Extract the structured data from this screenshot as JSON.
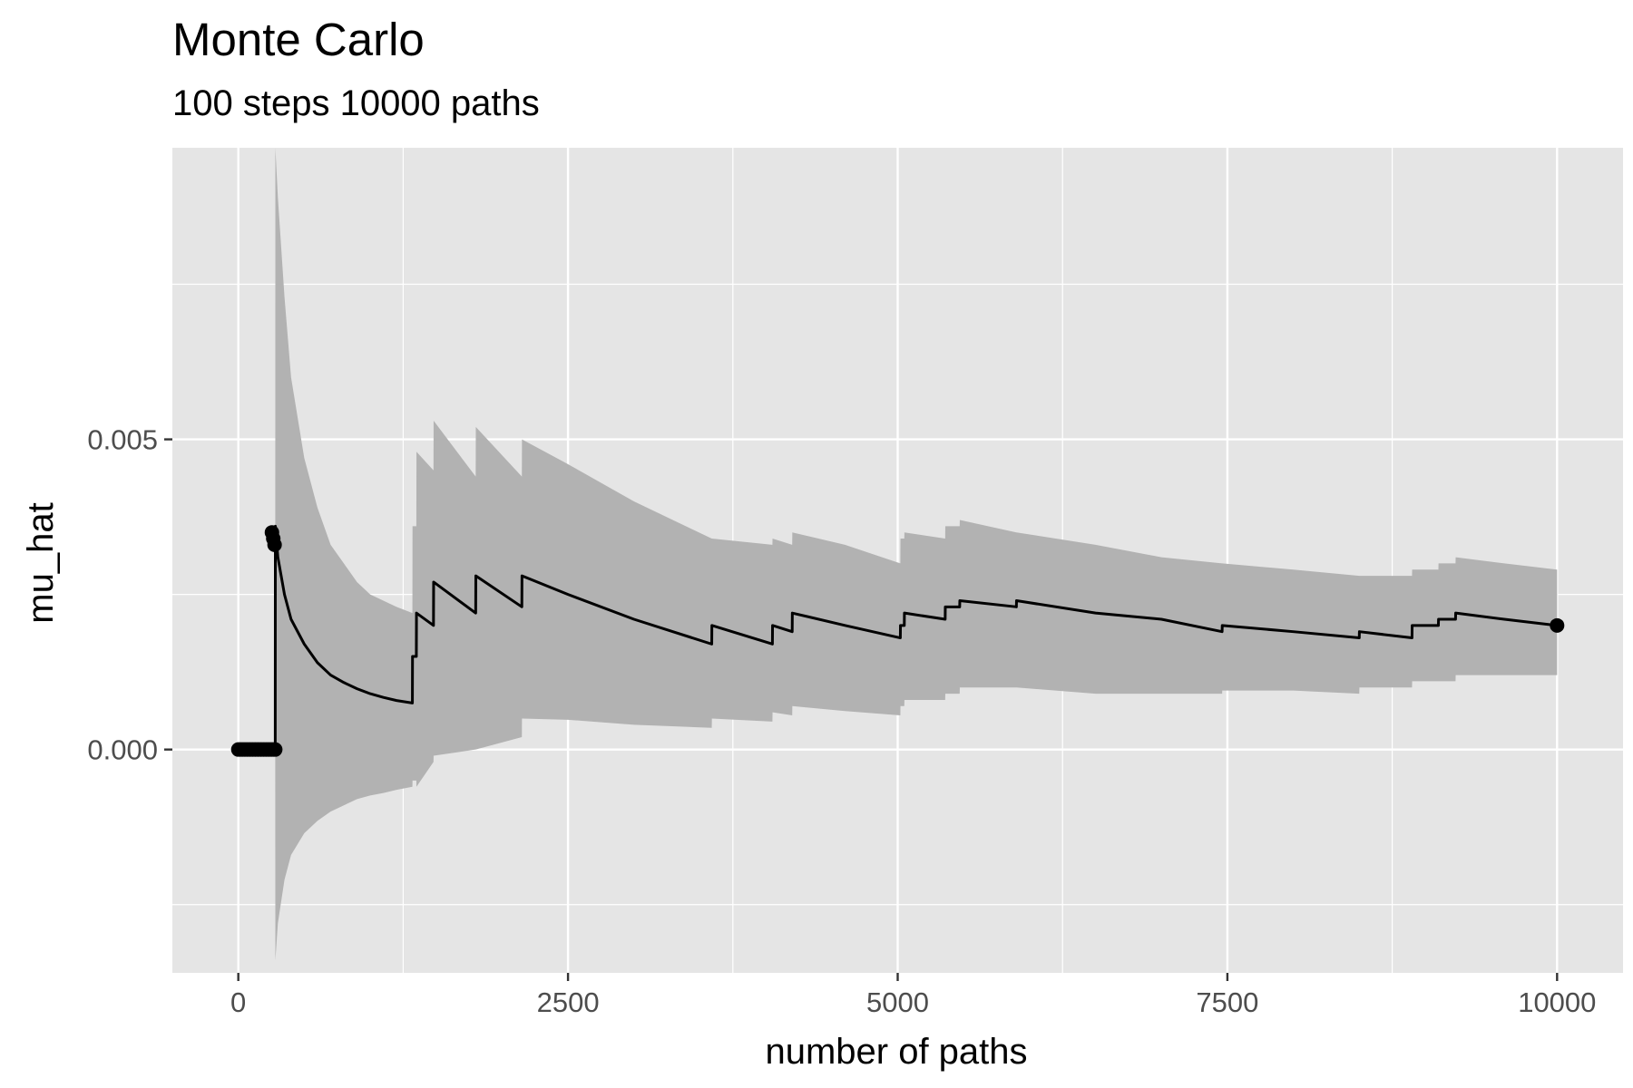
{
  "chart_data": {
    "type": "line",
    "title": "Monte Carlo",
    "subtitle": "100  steps 10000  paths",
    "xlabel": "number of paths",
    "ylabel": "mu_hat",
    "xlim": [
      -500,
      10500
    ],
    "ylim": [
      -0.0036,
      0.0097
    ],
    "x_ticks": [
      0,
      2500,
      5000,
      7500,
      10000
    ],
    "x_tick_labels": [
      "0",
      "2500",
      "5000",
      "7500",
      "10000"
    ],
    "y_ticks": [
      0.0,
      0.005
    ],
    "y_tick_labels": [
      "0.000",
      "0.005"
    ],
    "grid": true,
    "colors": {
      "panel": "#e5e5e5",
      "grid": "#ffffff",
      "ribbon": "#b2b2b2",
      "line": "#000000",
      "axis_text": "#4d4d4d"
    },
    "series": [
      {
        "x": [
          0,
          50,
          100,
          150,
          200,
          250,
          280,
          281,
          300,
          350,
          400,
          500,
          600,
          700,
          800,
          900,
          1000,
          1100,
          1200,
          1320,
          1321,
          1350,
          1351,
          1480,
          1481,
          1800,
          1801,
          2150,
          2151,
          2500,
          3000,
          3590,
          3591,
          4050,
          4051,
          4200,
          4201,
          4600,
          5020,
          5021,
          5050,
          5051,
          5360,
          5361,
          5470,
          5471,
          5900,
          5901,
          6500,
          7000,
          7460,
          7461,
          8000,
          8500,
          8501,
          8900,
          8901,
          9100,
          9101,
          9230,
          9231,
          9600,
          10000
        ],
        "y": [
          0.0,
          0.0,
          0.0,
          0.0,
          0.0,
          0.0,
          0.0,
          0.0036,
          0.0031,
          0.0025,
          0.0021,
          0.0017,
          0.0014,
          0.0012,
          0.00108,
          0.00098,
          0.0009,
          0.00084,
          0.00079,
          0.00075,
          0.0015,
          0.0015,
          0.0022,
          0.002,
          0.0027,
          0.0022,
          0.0028,
          0.0023,
          0.0028,
          0.0025,
          0.0021,
          0.0017,
          0.002,
          0.0017,
          0.002,
          0.0019,
          0.0022,
          0.002,
          0.0018,
          0.002,
          0.002,
          0.0022,
          0.0021,
          0.0023,
          0.0023,
          0.0024,
          0.0023,
          0.0024,
          0.0022,
          0.0021,
          0.0019,
          0.002,
          0.0019,
          0.0018,
          0.0019,
          0.0018,
          0.002,
          0.002,
          0.0021,
          0.0021,
          0.0022,
          0.0021,
          0.002
        ],
        "lower": [
          0.0,
          0.0,
          0.0,
          0.0,
          0.0,
          0.0,
          0.0,
          -0.0034,
          -0.0028,
          -0.0021,
          -0.0017,
          -0.00135,
          -0.00115,
          -0.001,
          -0.0009,
          -0.0008,
          -0.00074,
          -0.0007,
          -0.00065,
          -0.0006,
          -0.0005,
          -0.0005,
          -0.0006,
          -0.0002,
          -0.0001,
          0.0,
          0.0,
          0.0002,
          0.0005,
          0.00048,
          0.0004,
          0.00035,
          0.0005,
          0.00045,
          0.0006,
          0.00055,
          0.0007,
          0.00062,
          0.00055,
          0.0007,
          0.0007,
          0.0008,
          0.0008,
          0.0009,
          0.0009,
          0.001,
          0.001,
          0.001,
          0.0009,
          0.0009,
          0.0009,
          0.00095,
          0.00095,
          0.0009,
          0.001,
          0.001,
          0.0011,
          0.0011,
          0.0011,
          0.0011,
          0.0012,
          0.0012,
          0.0012
        ],
        "upper": [
          0.0,
          0.0,
          0.0,
          0.0,
          0.0,
          0.0,
          0.0,
          0.0097,
          0.0089,
          0.0073,
          0.006,
          0.0047,
          0.0039,
          0.0033,
          0.003,
          0.0027,
          0.0025,
          0.0024,
          0.0023,
          0.0022,
          0.0036,
          0.0036,
          0.0048,
          0.0045,
          0.0053,
          0.0044,
          0.0052,
          0.0044,
          0.005,
          0.0046,
          0.004,
          0.0034,
          0.0034,
          0.0033,
          0.0034,
          0.0033,
          0.0035,
          0.0033,
          0.003,
          0.0034,
          0.0034,
          0.0035,
          0.0034,
          0.0036,
          0.0036,
          0.0037,
          0.0035,
          0.0035,
          0.0033,
          0.0031,
          0.003,
          0.003,
          0.0029,
          0.0028,
          0.0028,
          0.0028,
          0.0029,
          0.0029,
          0.003,
          0.003,
          0.0031,
          0.003,
          0.0029
        ]
      }
    ],
    "points": [
      {
        "x": 0,
        "y": 0.0
      },
      {
        "x": 20,
        "y": 0.0
      },
      {
        "x": 40,
        "y": 0.0
      },
      {
        "x": 60,
        "y": 0.0
      },
      {
        "x": 80,
        "y": 0.0
      },
      {
        "x": 100,
        "y": 0.0
      },
      {
        "x": 120,
        "y": 0.0
      },
      {
        "x": 140,
        "y": 0.0
      },
      {
        "x": 160,
        "y": 0.0
      },
      {
        "x": 180,
        "y": 0.0
      },
      {
        "x": 200,
        "y": 0.0
      },
      {
        "x": 220,
        "y": 0.0
      },
      {
        "x": 240,
        "y": 0.0
      },
      {
        "x": 260,
        "y": 0.0
      },
      {
        "x": 280,
        "y": 0.0
      },
      {
        "x": 255,
        "y": 0.0035
      },
      {
        "x": 265,
        "y": 0.0034
      },
      {
        "x": 275,
        "y": 0.0033
      },
      {
        "x": 10000,
        "y": 0.002
      }
    ]
  }
}
